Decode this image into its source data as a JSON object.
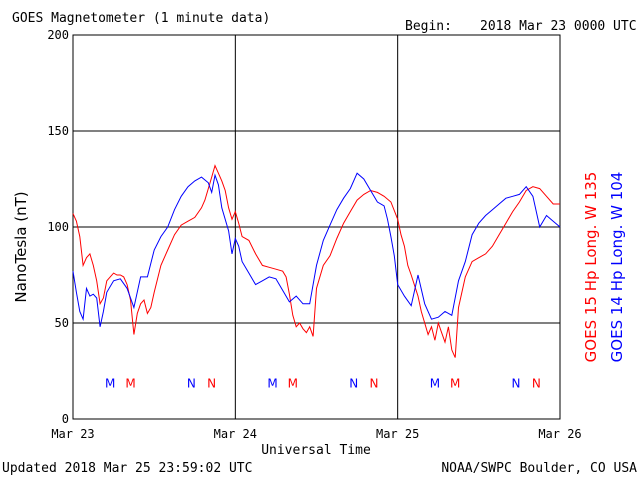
{
  "header": {
    "title": "GOES Magnetometer (1 minute data)",
    "begin_label": "Begin:",
    "begin_date": "2018 Mar 23 0000 UTC"
  },
  "footer": {
    "updated": "Updated 2018 Mar 25 23:59:02 UTC",
    "credit": "NOAA/SWPC Boulder, CO USA"
  },
  "colors": {
    "red": "#ff0000",
    "blue": "#0000ff",
    "grid": "#000000"
  },
  "chart_data": {
    "type": "line",
    "title": "GOES Magnetometer (1 minute data)",
    "xlabel": "Universal Time",
    "ylabel": "NanoTesla (nT)",
    "xlim": [
      0,
      72
    ],
    "x_unit": "hours since 2018 Mar 23 0000 UTC",
    "ylim": [
      0,
      200
    ],
    "yticks": [
      0,
      50,
      100,
      150,
      200
    ],
    "xticks": [
      {
        "x": 0,
        "label": "Mar 23"
      },
      {
        "x": 24,
        "label": "Mar 24"
      },
      {
        "x": 48,
        "label": "Mar 25"
      },
      {
        "x": 72,
        "label": "Mar 26"
      }
    ],
    "grid": true,
    "series": [
      {
        "name": "GOES 15 Hp Long. W 135",
        "color": "#ff0000",
        "points": [
          [
            0,
            107
          ],
          [
            0.5,
            103
          ],
          [
            1,
            95
          ],
          [
            1.5,
            80
          ],
          [
            2,
            84
          ],
          [
            2.5,
            86
          ],
          [
            3,
            80
          ],
          [
            3.5,
            72
          ],
          [
            4,
            60
          ],
          [
            4.5,
            63
          ],
          [
            5,
            72
          ],
          [
            5.5,
            74
          ],
          [
            6,
            76
          ],
          [
            6.5,
            75
          ],
          [
            7,
            75
          ],
          [
            7.5,
            74
          ],
          [
            8,
            70
          ],
          [
            8.5,
            62
          ],
          [
            9,
            44
          ],
          [
            9.5,
            55
          ],
          [
            10,
            60
          ],
          [
            10.5,
            62
          ],
          [
            11,
            55
          ],
          [
            11.5,
            58
          ],
          [
            12,
            66
          ],
          [
            13,
            80
          ],
          [
            14,
            88
          ],
          [
            15,
            96
          ],
          [
            16,
            101
          ],
          [
            17,
            103
          ],
          [
            18,
            105
          ],
          [
            19,
            110
          ],
          [
            19.5,
            114
          ],
          [
            20,
            120
          ],
          [
            20.5,
            126
          ],
          [
            21,
            132
          ],
          [
            21.5,
            128
          ],
          [
            22,
            124
          ],
          [
            22.5,
            119
          ],
          [
            23,
            110
          ],
          [
            23.5,
            104
          ],
          [
            24,
            108
          ],
          [
            24.5,
            102
          ],
          [
            25,
            95
          ],
          [
            26,
            93
          ],
          [
            27,
            86
          ],
          [
            28,
            80
          ],
          [
            29,
            79
          ],
          [
            30,
            78
          ],
          [
            31,
            77
          ],
          [
            31.5,
            74
          ],
          [
            32,
            65
          ],
          [
            32.5,
            54
          ],
          [
            33,
            48
          ],
          [
            33.5,
            50
          ],
          [
            34,
            47
          ],
          [
            34.5,
            45
          ],
          [
            35,
            48
          ],
          [
            35.5,
            43
          ],
          [
            36,
            68
          ],
          [
            37,
            80
          ],
          [
            38,
            85
          ],
          [
            39,
            94
          ],
          [
            40,
            102
          ],
          [
            41,
            108
          ],
          [
            42,
            114
          ],
          [
            43,
            117
          ],
          [
            44,
            119
          ],
          [
            45,
            118
          ],
          [
            46,
            116
          ],
          [
            47,
            113
          ],
          [
            48,
            104
          ],
          [
            48.5,
            96
          ],
          [
            49,
            90
          ],
          [
            49.5,
            80
          ],
          [
            50,
            75
          ],
          [
            51,
            64
          ],
          [
            51.5,
            56
          ],
          [
            52,
            50
          ],
          [
            52.5,
            44
          ],
          [
            53,
            48
          ],
          [
            53.5,
            41
          ],
          [
            54,
            50
          ],
          [
            54.5,
            45
          ],
          [
            55,
            40
          ],
          [
            55.5,
            48
          ],
          [
            56,
            36
          ],
          [
            56.5,
            32
          ],
          [
            57,
            58
          ],
          [
            58,
            74
          ],
          [
            59,
            82
          ],
          [
            60,
            84
          ],
          [
            61,
            86
          ],
          [
            62,
            90
          ],
          [
            63,
            96
          ],
          [
            64,
            102
          ],
          [
            65,
            108
          ],
          [
            66,
            113
          ],
          [
            67,
            119
          ],
          [
            68,
            121
          ],
          [
            69,
            120
          ],
          [
            70,
            116
          ],
          [
            71,
            112
          ],
          [
            72,
            112
          ]
        ]
      },
      {
        "name": "GOES 14 Hp Long. W 104",
        "color": "#0000ff",
        "points": [
          [
            0,
            77
          ],
          [
            0.5,
            66
          ],
          [
            1,
            56
          ],
          [
            1.5,
            52
          ],
          [
            2,
            68
          ],
          [
            2.5,
            64
          ],
          [
            3,
            65
          ],
          [
            3.5,
            63
          ],
          [
            4,
            48
          ],
          [
            4.5,
            56
          ],
          [
            5,
            66
          ],
          [
            6,
            72
          ],
          [
            7,
            73
          ],
          [
            8,
            68
          ],
          [
            9,
            58
          ],
          [
            10,
            74
          ],
          [
            11,
            74
          ],
          [
            12,
            88
          ],
          [
            13,
            95
          ],
          [
            14,
            100
          ],
          [
            15,
            109
          ],
          [
            16,
            116
          ],
          [
            17,
            121
          ],
          [
            18,
            124
          ],
          [
            19,
            126
          ],
          [
            20,
            123
          ],
          [
            20.5,
            118
          ],
          [
            21,
            127
          ],
          [
            21.5,
            122
          ],
          [
            22,
            110
          ],
          [
            23,
            98
          ],
          [
            23.5,
            86
          ],
          [
            24,
            94
          ],
          [
            24.5,
            90
          ],
          [
            25,
            82
          ],
          [
            26,
            76
          ],
          [
            27,
            70
          ],
          [
            28,
            72
          ],
          [
            29,
            74
          ],
          [
            30,
            73
          ],
          [
            31,
            67
          ],
          [
            32,
            61
          ],
          [
            33,
            64
          ],
          [
            34,
            60
          ],
          [
            35,
            60
          ],
          [
            36,
            80
          ],
          [
            37,
            93
          ],
          [
            38,
            101
          ],
          [
            39,
            109
          ],
          [
            40,
            115
          ],
          [
            41,
            120
          ],
          [
            42,
            128
          ],
          [
            43,
            125
          ],
          [
            44,
            119
          ],
          [
            45,
            113
          ],
          [
            46,
            111
          ],
          [
            46.5,
            104
          ],
          [
            47,
            95
          ],
          [
            47.5,
            85
          ],
          [
            48,
            70
          ],
          [
            49,
            64
          ],
          [
            50,
            59
          ],
          [
            51,
            75
          ],
          [
            52,
            60
          ],
          [
            53,
            52
          ],
          [
            54,
            53
          ],
          [
            55,
            56
          ],
          [
            56,
            54
          ],
          [
            57,
            72
          ],
          [
            58,
            82
          ],
          [
            59,
            96
          ],
          [
            60,
            102
          ],
          [
            61,
            106
          ],
          [
            62,
            109
          ],
          [
            63,
            112
          ],
          [
            64,
            115
          ],
          [
            65,
            116
          ],
          [
            66,
            117
          ],
          [
            67,
            121
          ],
          [
            68,
            116
          ],
          [
            69,
            100
          ],
          [
            70,
            106
          ],
          [
            71,
            103
          ],
          [
            72,
            100
          ]
        ]
      }
    ],
    "markers": [
      {
        "label": "M",
        "x": 5.5,
        "color": "#0000ff"
      },
      {
        "label": "M",
        "x": 8.5,
        "color": "#ff0000"
      },
      {
        "label": "N",
        "x": 17.5,
        "color": "#0000ff"
      },
      {
        "label": "N",
        "x": 20.5,
        "color": "#ff0000"
      },
      {
        "label": "M",
        "x": 29.5,
        "color": "#0000ff"
      },
      {
        "label": "M",
        "x": 32.5,
        "color": "#ff0000"
      },
      {
        "label": "N",
        "x": 41.5,
        "color": "#0000ff"
      },
      {
        "label": "N",
        "x": 44.5,
        "color": "#ff0000"
      },
      {
        "label": "M",
        "x": 53.5,
        "color": "#0000ff"
      },
      {
        "label": "M",
        "x": 56.5,
        "color": "#ff0000"
      },
      {
        "label": "N",
        "x": 65.5,
        "color": "#0000ff"
      },
      {
        "label": "N",
        "x": 68.5,
        "color": "#ff0000"
      }
    ],
    "marker_y": 19
  }
}
